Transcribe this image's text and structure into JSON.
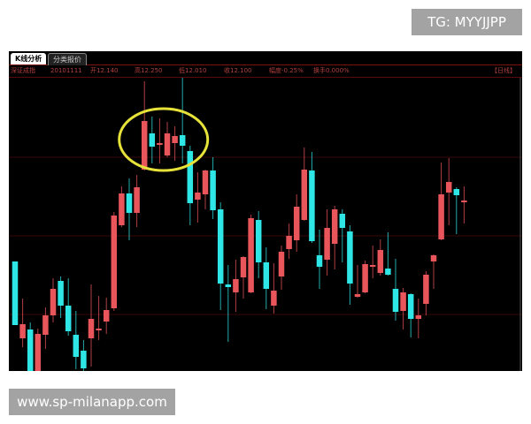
{
  "watermarks": {
    "top": "TG: MYYJJPP",
    "bottom": "www.sp-milanapp.com"
  },
  "tabs": [
    {
      "label": "K线分析",
      "active": true
    },
    {
      "label": "分类报价",
      "active": false
    }
  ],
  "info_bar": {
    "index_name": "深证成指",
    "date": "20101111",
    "open": "开12.140",
    "high": "高12.250",
    "low": "低12.010",
    "close": "收12.100",
    "change": "幅度-0.25%",
    "turnover": "换手0.000%",
    "period": "【日线】"
  },
  "colors": {
    "up": "#e8555a",
    "down": "#2fe6e6",
    "background": "#000000",
    "grid": "#3a0808",
    "highlight": "#e6e23a"
  },
  "chart_data": {
    "type": "candlestick",
    "title": "",
    "xlabel": "",
    "ylabel": "",
    "note": "",
    "grid": true,
    "highlight": "yellow ellipse around candles 18-23 (top formation)",
    "ohlc": [
      [
        124,
        124,
        52,
        52
      ],
      [
        37,
        82,
        27,
        53
      ],
      [
        47,
        55,
        0,
        0
      ],
      [
        0,
        48,
        0,
        42
      ],
      [
        41,
        72,
        25,
        63
      ],
      [
        63,
        105,
        55,
        93
      ],
      [
        102,
        107,
        60,
        74
      ],
      [
        74,
        105,
        40,
        45
      ],
      [
        41,
        68,
        2,
        16
      ],
      [
        23,
        35,
        0,
        3
      ],
      [
        37,
        98,
        5,
        59
      ],
      [
        46,
        85,
        35,
        48
      ],
      [
        56,
        83,
        42,
        69
      ],
      [
        71,
        180,
        68,
        176
      ],
      [
        165,
        209,
        163,
        201
      ],
      [
        201,
        218,
        148,
        179
      ],
      [
        179,
        222,
        163,
        208
      ],
      [
        228,
        328,
        227,
        283
      ],
      [
        269,
        288,
        235,
        254
      ],
      [
        256,
        286,
        235,
        258
      ],
      [
        244,
        282,
        242,
        269
      ],
      [
        258,
        277,
        238,
        266
      ],
      [
        267,
        332,
        235,
        255
      ],
      [
        249,
        255,
        165,
        190
      ],
      [
        194,
        225,
        168,
        202
      ],
      [
        200,
        228,
        183,
        227
      ],
      [
        227,
        242,
        172,
        182
      ],
      [
        183,
        191,
        69,
        99
      ],
      [
        98,
        120,
        33,
        95
      ],
      [
        89,
        126,
        67,
        104
      ],
      [
        106,
        130,
        82,
        129
      ],
      [
        89,
        177,
        88,
        173
      ],
      [
        171,
        181,
        105,
        123
      ],
      [
        123,
        140,
        70,
        93
      ],
      [
        74,
        122,
        65,
        91
      ],
      [
        107,
        142,
        92,
        135
      ],
      [
        138,
        167,
        127,
        153
      ],
      [
        148,
        200,
        135,
        186
      ],
      [
        171,
        253,
        170,
        228
      ],
      [
        227,
        248,
        145,
        147
      ],
      [
        131,
        160,
        93,
        118
      ],
      [
        126,
        183,
        108,
        162
      ],
      [
        144,
        187,
        115,
        183
      ],
      [
        178,
        183,
        123,
        162
      ],
      [
        158,
        165,
        75,
        99
      ],
      [
        84,
        120,
        83,
        87
      ],
      [
        89,
        125,
        88,
        121
      ],
      [
        118,
        142,
        105,
        120
      ],
      [
        111,
        149,
        108,
        137
      ],
      [
        116,
        157,
        108,
        109
      ],
      [
        93,
        127,
        57,
        67
      ],
      [
        68,
        94,
        47,
        89
      ],
      [
        87,
        88,
        38,
        59
      ],
      [
        59,
        82,
        37,
        63
      ],
      [
        76,
        113,
        63,
        109
      ],
      [
        124,
        132,
        93,
        131
      ],
      [
        149,
        236,
        148,
        200
      ],
      [
        202,
        241,
        165,
        214
      ],
      [
        206,
        208,
        155,
        199
      ],
      [
        191,
        209,
        167,
        193
      ]
    ]
  }
}
